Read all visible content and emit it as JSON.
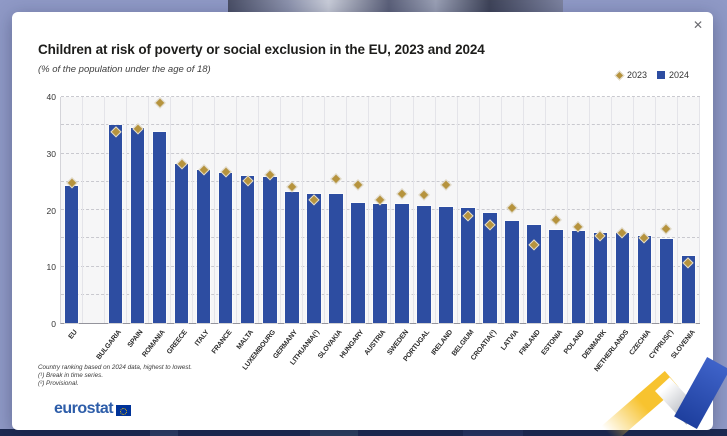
{
  "window": {
    "close_icon_glyph": "✕"
  },
  "chart": {
    "title": "Children at risk of poverty or social exclusion in the EU, 2023 and 2024",
    "subtitle": "(% of the population under the age of 18)",
    "legend": [
      {
        "label": "2023",
        "marker": "diamond-icon"
      },
      {
        "label": "2024",
        "marker": "square-icon"
      }
    ],
    "footnotes": [
      "Country ranking based on 2024 data, highest to lowest.",
      "(¹) Break in time series.",
      "(²) Provisional."
    ],
    "logo_text": "eurostat"
  },
  "chart_data": {
    "type": "bar",
    "title": "Children at risk of poverty or social exclusion in the EU, 2023 and 2024",
    "subtitle": "(% of the population under the age of 18)",
    "xlabel": "",
    "ylabel": "% of the population under the age of 18",
    "ylim": [
      0,
      40
    ],
    "yticks": [
      0,
      10,
      20,
      30,
      40
    ],
    "grid_step": 5,
    "grid": "horizontal dashed + vertical column separators",
    "legend_position": "top-right",
    "categories": [
      "EU",
      "BULGARIA",
      "SPAIN",
      "ROMANIA",
      "GREECE",
      "ITALY",
      "FRANCE",
      "MALTA",
      "LUXEMBOURG",
      "GERMANY",
      "LITHUANIA(¹)",
      "SLOVAKIA",
      "HUNGARY",
      "AUSTRIA",
      "SWEDEN",
      "PORTUGAL",
      "IRELAND",
      "BELGIUM",
      "CROATIA(¹)",
      "LATVIA",
      "FINLAND",
      "ESTONIA",
      "POLAND",
      "DENMARK",
      "NETHERLANDS",
      "CZECHIA",
      "CYPRUS(²)",
      "SLOVENIA"
    ],
    "series": [
      {
        "name": "2023",
        "style": "diamond",
        "values": [
          24.8,
          33.9,
          34.5,
          39.0,
          28.2,
          27.2,
          26.9,
          25.3,
          26.3,
          24.2,
          21.8,
          25.6,
          24.6,
          21.8,
          22.9,
          22.8,
          24.5,
          19.1,
          17.4,
          20.5,
          13.9,
          18.4,
          17.1,
          15.5,
          16.1,
          15.1,
          16.8,
          10.7
        ]
      },
      {
        "name": "2024",
        "style": "bar",
        "values": [
          24.2,
          35.1,
          34.6,
          33.8,
          28.1,
          27.1,
          26.5,
          26.1,
          25.9,
          23.2,
          22.9,
          22.8,
          21.3,
          21.0,
          21.0,
          20.7,
          20.6,
          20.4,
          19.4,
          18.0,
          17.4,
          16.5,
          16.3,
          16.0,
          15.9,
          15.4,
          14.9,
          11.8
        ]
      }
    ],
    "note": "gap column between EU aggregate and member states"
  },
  "colors": {
    "bar_2024": "#2d4da1",
    "diamond_2023": "#b6933d",
    "plot_background": "#f6f6f7",
    "page_background": "#8f99c6",
    "bottom_bar": "#1d2a52",
    "flag_blue": "#003399",
    "star_yellow": "#ffcc00",
    "deco_yellow": "#f7c32f",
    "deco_blue": "#2a4fae"
  }
}
